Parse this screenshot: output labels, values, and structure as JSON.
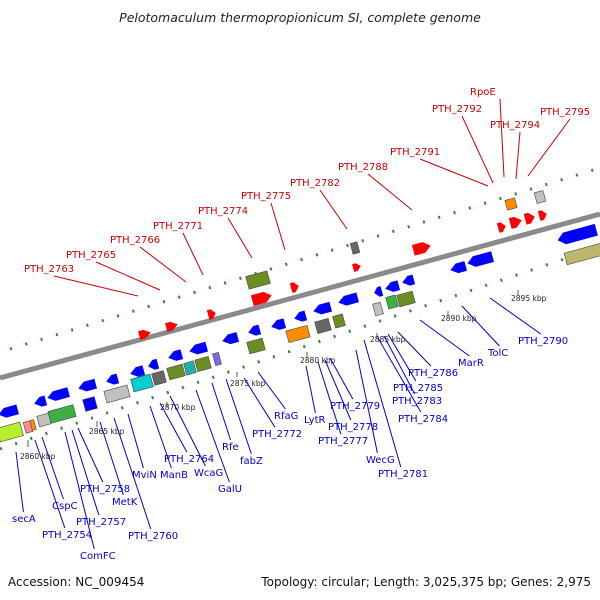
{
  "header": {
    "title": "Pelotomaculum thermopropionicum SI, complete genome"
  },
  "footer": {
    "accession": "Accession: NC_009454",
    "topology": "Topology: circular; Length: 3,025,375 bp; Genes: 2,975"
  },
  "colors": {
    "backbone": "#8a8a8a",
    "dots": "#2e8b2e",
    "label_top": "#cc0000",
    "label_bottom": "#0000cc",
    "gene_red": "#ff0000",
    "gene_blue": "#0000ff"
  },
  "scale_ticks": [
    "2860 kbp",
    "2865 kbp",
    "2870 kbp",
    "2875 kbp",
    "2880 kbp",
    "2885 kbp",
    "2890 kbp",
    "2895 kbp"
  ],
  "labels_top": [
    "PTH_2763",
    "PTH_2765",
    "PTH_2766",
    "PTH_2771",
    "PTH_2774",
    "PTH_2775",
    "PTH_2782",
    "PTH_2788",
    "PTH_2791",
    "PTH_2792",
    "RpoE",
    "PTH_2794",
    "PTH_2795"
  ],
  "labels_bottom": [
    "secA",
    "PTH_2754",
    "CspC",
    "ComFC",
    "PTH_2757",
    "PTH_2758",
    "MetK",
    "PTH_2760",
    "MviN",
    "ManB",
    "PTH_2764",
    "WcaG",
    "GalU",
    "Rfe",
    "fabZ",
    "PTH_2772",
    "RfaG",
    "LytR",
    "PTH_2777",
    "PTH_2778",
    "PTH_2779",
    "WecG",
    "PTH_2781",
    "PTH_2784",
    "PTH_2783",
    "PTH_2785",
    "PTH_2786",
    "MarR",
    "TolC",
    "PTH_2790"
  ]
}
